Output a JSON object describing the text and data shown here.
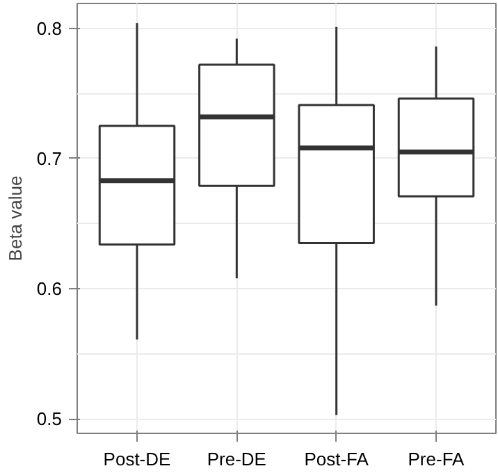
{
  "chart_data": {
    "type": "box",
    "ylabel": "Beta value",
    "categories": [
      "Post-DE",
      "Pre-DE",
      "Post-FA",
      "Pre-FA"
    ],
    "boxes": [
      {
        "low": 0.561,
        "q1": 0.634,
        "median": 0.683,
        "q3": 0.725,
        "high": 0.804
      },
      {
        "low": 0.608,
        "q1": 0.679,
        "median": 0.732,
        "q3": 0.772,
        "high": 0.792
      },
      {
        "low": 0.503,
        "q1": 0.635,
        "median": 0.708,
        "q3": 0.741,
        "high": 0.801
      },
      {
        "low": 0.587,
        "q1": 0.671,
        "median": 0.705,
        "q3": 0.746,
        "high": 0.786
      }
    ],
    "color": "#333333",
    "ylim": [
      0.489,
      0.819
    ],
    "yticks": [
      0.5,
      {
        "value": 0.55,
        "label": null
      },
      0.6,
      {
        "value": 0.65,
        "label": null
      },
      0.7,
      {
        "value": 0.75,
        "label": null
      },
      0.8
    ],
    "grid": true
  }
}
